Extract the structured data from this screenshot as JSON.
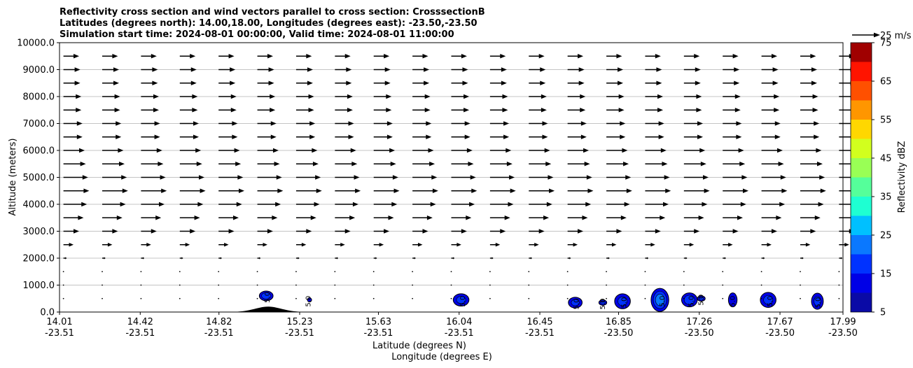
{
  "chart_data": {
    "type": "contour_with_vectors",
    "title_lines": [
      "Reflectivity cross section and wind vectors parallel to cross section: CrosssectionB",
      "Latitudes (degrees north): 14.00,18.00, Longitudes (degrees east): -23.50,-23.50",
      "Simulation start time: 2024-08-01 00:00:00, Valid time: 2024-08-01 11:00:00"
    ],
    "xlabel_lines": [
      "Latitude (degrees N)",
      "Longitude (degrees E)"
    ],
    "ylabel": "Altitude (meters)",
    "xlim": [
      14.01,
      17.99
    ],
    "ylim": [
      0,
      10000
    ],
    "x_ticks": [
      {
        "lat": "14.01",
        "lon": "-23.51",
        "value": 14.01
      },
      {
        "lat": "14.42",
        "lon": "-23.51",
        "value": 14.42
      },
      {
        "lat": "14.82",
        "lon": "-23.51",
        "value": 14.82
      },
      {
        "lat": "15.23",
        "lon": "-23.51",
        "value": 15.23
      },
      {
        "lat": "15.63",
        "lon": "-23.51",
        "value": 15.63
      },
      {
        "lat": "16.04",
        "lon": "-23.51",
        "value": 16.04
      },
      {
        "lat": "16.45",
        "lon": "-23.51",
        "value": 16.45
      },
      {
        "lat": "16.85",
        "lon": "-23.50",
        "value": 16.85
      },
      {
        "lat": "17.26",
        "lon": "-23.50",
        "value": 17.26
      },
      {
        "lat": "17.67",
        "lon": "-23.50",
        "value": 17.67
      },
      {
        "lat": "17.99",
        "lon": "-23.50",
        "value": 17.99
      }
    ],
    "y_ticks": [
      0,
      1000,
      2000,
      3000,
      4000,
      5000,
      6000,
      7000,
      8000,
      9000,
      10000
    ],
    "y_tick_labels": [
      "0.0",
      "1000.0",
      "2000.0",
      "3000.0",
      "4000.0",
      "5000.0",
      "6000.0",
      "7000.0",
      "8000.0",
      "9000.0",
      "10000.0"
    ],
    "grid": "horizontal",
    "colorbar": {
      "label": "Reflectivity dBZ",
      "levels": [
        5,
        10,
        15,
        20,
        25,
        30,
        35,
        40,
        45,
        50,
        55,
        60,
        65,
        70,
        75
      ],
      "tick_labels": [
        "5",
        "15",
        "25",
        "35",
        "45",
        "55",
        "65",
        "75"
      ],
      "colors": [
        "#0a0aa6",
        "#0000e6",
        "#0032ff",
        "#0a78ff",
        "#00c0ff",
        "#1effd2",
        "#55ff9a",
        "#99ff55",
        "#d2ff1e",
        "#ffd700",
        "#ff9600",
        "#ff5000",
        "#ff1400",
        "#a00000"
      ]
    },
    "vector_key": {
      "label": "25 m/s",
      "speed": 25
    },
    "wind_profile": [
      {
        "z": 500,
        "speed": 0.5
      },
      {
        "z": 1000,
        "speed": 0.8
      },
      {
        "z": 1500,
        "speed": 1.2
      },
      {
        "z": 2000,
        "speed": 3
      },
      {
        "z": 2500,
        "speed": 9
      },
      {
        "z": 3000,
        "speed": 14
      },
      {
        "z": 3500,
        "speed": 18
      },
      {
        "z": 4000,
        "speed": 21
      },
      {
        "z": 4500,
        "speed": 23
      },
      {
        "z": 5000,
        "speed": 22
      },
      {
        "z": 5500,
        "speed": 20
      },
      {
        "z": 6000,
        "speed": 19
      },
      {
        "z": 6500,
        "speed": 17
      },
      {
        "z": 7000,
        "speed": 17
      },
      {
        "z": 7500,
        "speed": 16
      },
      {
        "z": 8000,
        "speed": 16
      },
      {
        "z": 8500,
        "speed": 15
      },
      {
        "z": 9000,
        "speed": 15
      },
      {
        "z": 9500,
        "speed": 14
      }
    ],
    "terrain": {
      "center": 15.07,
      "half_width": 0.2,
      "height": 200
    },
    "echoes": [
      {
        "x": 15.06,
        "z": 600,
        "dx": 0.035,
        "dz": 180,
        "max_dbz": 15,
        "label": "5.0"
      },
      {
        "x": 15.28,
        "z": 450,
        "dx": 0.006,
        "dz": 60,
        "max_dbz": 8,
        "label": "5.0"
      },
      {
        "x": 16.05,
        "z": 450,
        "dx": 0.04,
        "dz": 230,
        "max_dbz": 12,
        "label": "5.0"
      },
      {
        "x": 16.63,
        "z": 350,
        "dx": 0.035,
        "dz": 200,
        "max_dbz": 12,
        "label": "5.0"
      },
      {
        "x": 16.77,
        "z": 350,
        "dx": 0.02,
        "dz": 100,
        "max_dbz": 12,
        "label": "5.0"
      },
      {
        "x": 16.87,
        "z": 400,
        "dx": 0.04,
        "dz": 280,
        "max_dbz": 12,
        "label": "5.0"
      },
      {
        "x": 17.06,
        "z": 450,
        "dx": 0.045,
        "dz": 430,
        "max_dbz": 20,
        "label": "5.0"
      },
      {
        "x": 17.21,
        "z": 450,
        "dx": 0.04,
        "dz": 260,
        "max_dbz": 15,
        "label": "5.0"
      },
      {
        "x": 17.27,
        "z": 500,
        "dx": 0.02,
        "dz": 100,
        "max_dbz": 12,
        "label": "5.0"
      },
      {
        "x": 17.43,
        "z": 450,
        "dx": 0.022,
        "dz": 260,
        "max_dbz": 10,
        "label": "5.0"
      },
      {
        "x": 17.61,
        "z": 450,
        "dx": 0.04,
        "dz": 280,
        "max_dbz": 12,
        "label": "5.0"
      },
      {
        "x": 17.86,
        "z": 400,
        "dx": 0.03,
        "dz": 300,
        "max_dbz": 12,
        "label": "5.0"
      }
    ]
  }
}
